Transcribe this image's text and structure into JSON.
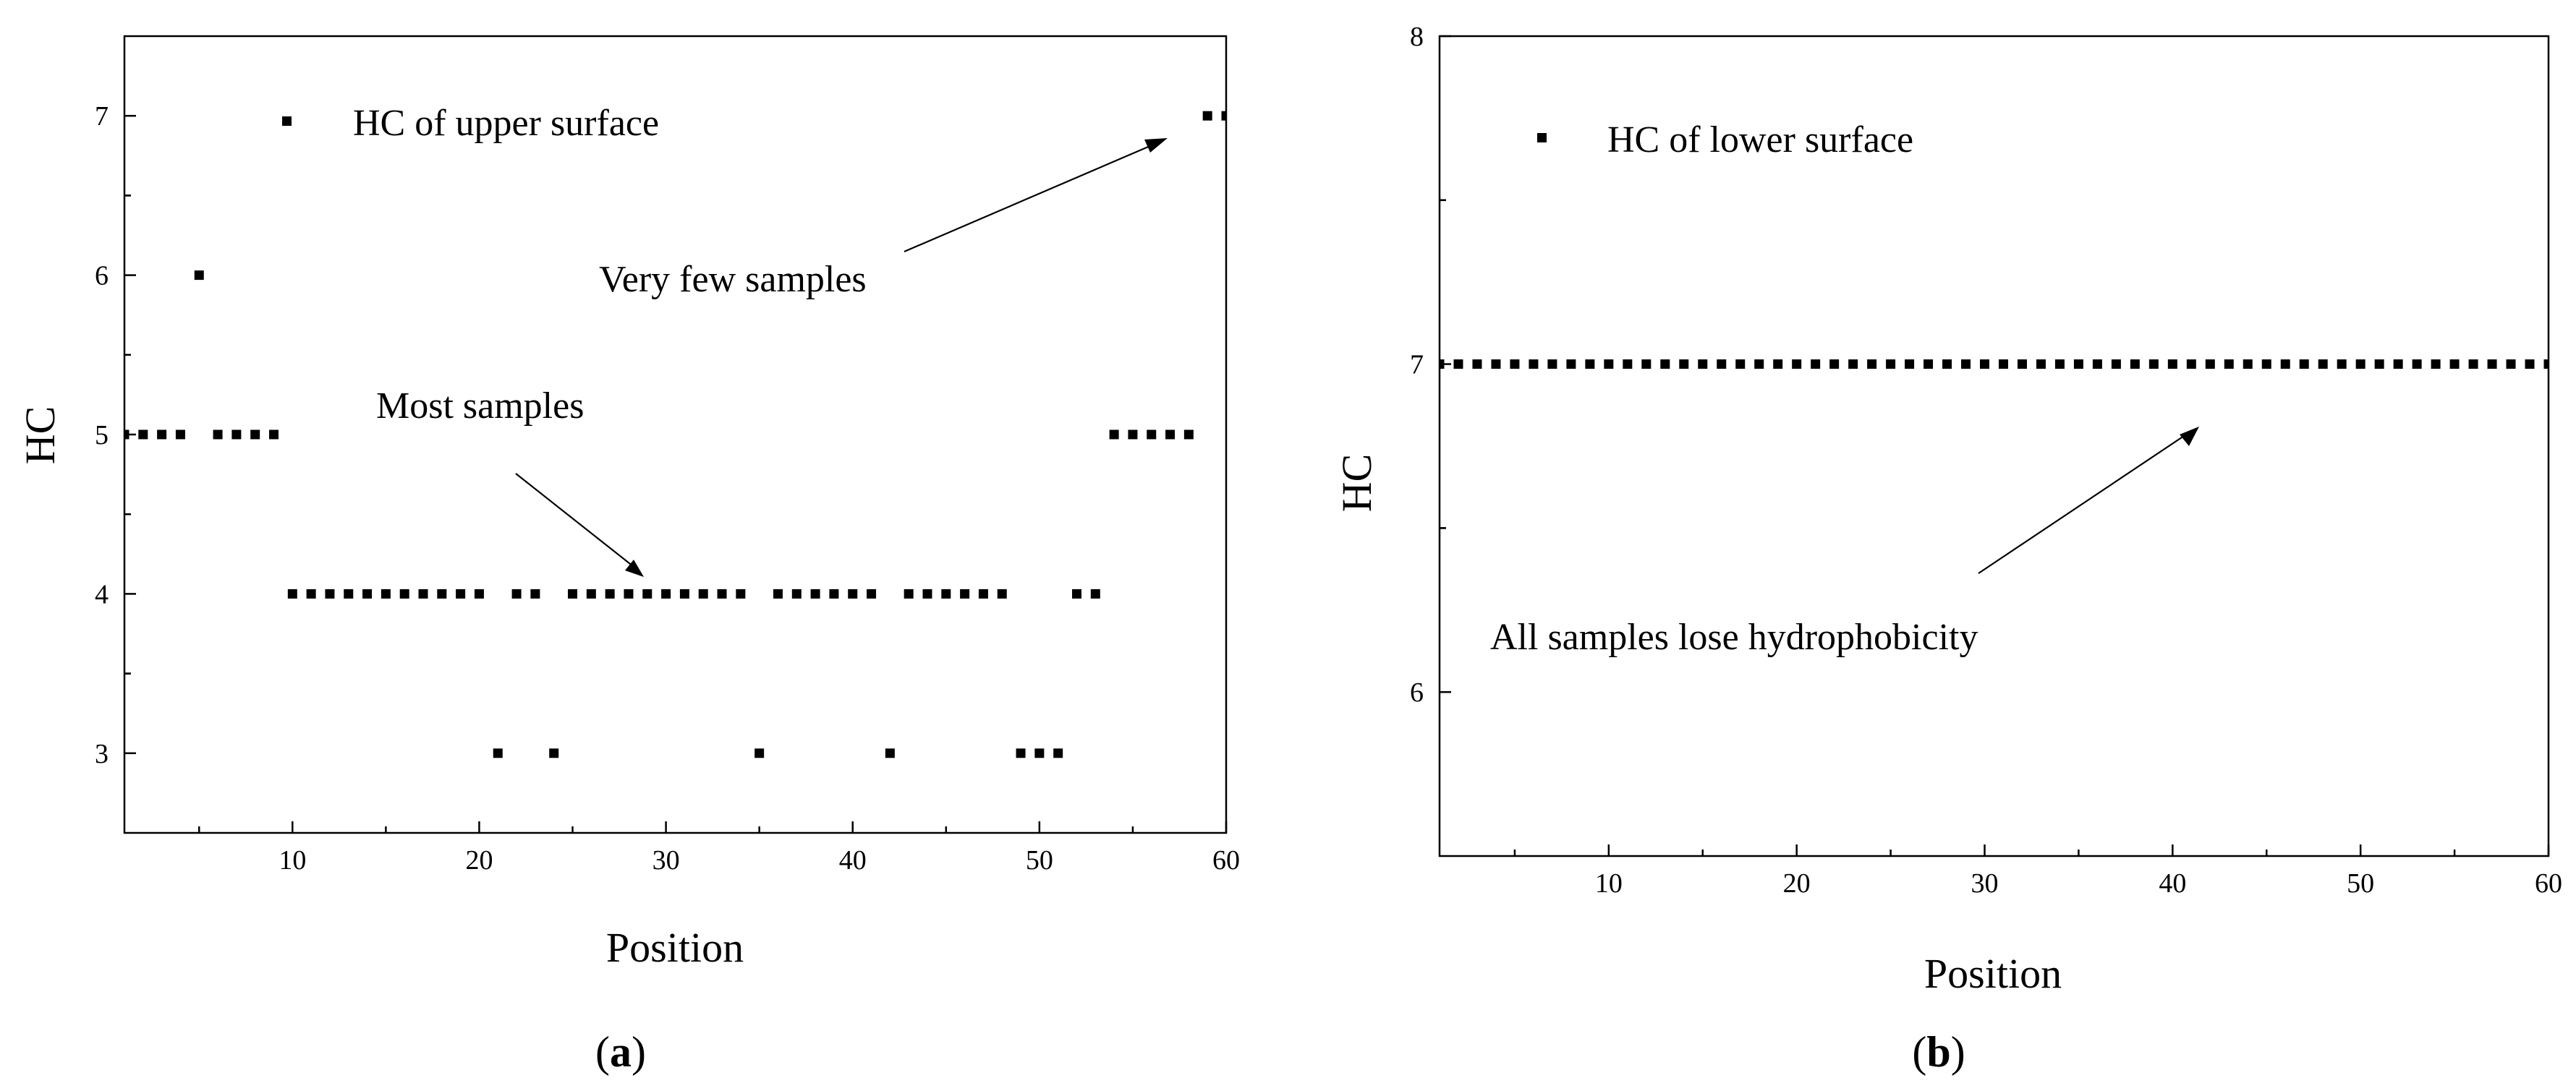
{
  "chart_data": [
    {
      "type": "scatter",
      "panel_label": "a",
      "xlabel": "Position",
      "ylabel": "HC",
      "xlim": [
        1,
        60
      ],
      "ylim": [
        2.5,
        7.5
      ],
      "x_ticks": [
        10,
        20,
        30,
        40,
        50,
        60
      ],
      "y_ticks": [
        3,
        4,
        5,
        6,
        7
      ],
      "series": [
        {
          "name": "HC of upper surface",
          "x": [
            1,
            2,
            3,
            4,
            5,
            6,
            7,
            8,
            9,
            10,
            11,
            12,
            13,
            14,
            15,
            16,
            17,
            18,
            19,
            20,
            21,
            22,
            23,
            24,
            25,
            26,
            27,
            28,
            29,
            30,
            31,
            32,
            33,
            34,
            35,
            36,
            37,
            38,
            39,
            40,
            41,
            42,
            43,
            44,
            45,
            46,
            47,
            48,
            49,
            50,
            51,
            52,
            53,
            54,
            55,
            56,
            57,
            58,
            59,
            60
          ],
          "y": [
            5,
            5,
            5,
            5,
            6,
            5,
            5,
            5,
            5,
            4,
            4,
            4,
            4,
            4,
            4,
            4,
            4,
            4,
            4,
            4,
            3,
            4,
            4,
            3,
            4,
            4,
            4,
            4,
            4,
            4,
            4,
            4,
            4,
            4,
            3,
            4,
            4,
            4,
            4,
            4,
            4,
            3,
            4,
            4,
            4,
            4,
            4,
            4,
            3,
            3,
            3,
            4,
            4,
            5,
            5,
            5,
            5,
            5,
            7,
            7
          ]
        }
      ],
      "annotations": [
        {
          "text": "Very few samples",
          "target": [
            58.5,
            6.87
          ]
        },
        {
          "text": "Most samples",
          "target": [
            29,
            4.1
          ]
        }
      ],
      "legend_position": "top-left"
    },
    {
      "type": "scatter",
      "panel_label": "b",
      "xlabel": "Position",
      "ylabel": "HC",
      "xlim": [
        1,
        60
      ],
      "ylim": [
        5.5,
        8
      ],
      "x_ticks": [
        10,
        20,
        30,
        40,
        50,
        60
      ],
      "y_ticks": [
        6,
        7,
        8
      ],
      "series": [
        {
          "name": "HC of lower surface",
          "x": [
            1,
            2,
            3,
            4,
            5,
            6,
            7,
            8,
            9,
            10,
            11,
            12,
            13,
            14,
            15,
            16,
            17,
            18,
            19,
            20,
            21,
            22,
            23,
            24,
            25,
            26,
            27,
            28,
            29,
            30,
            31,
            32,
            33,
            34,
            35,
            36,
            37,
            38,
            39,
            40,
            41,
            42,
            43,
            44,
            45,
            46,
            47,
            48,
            49,
            50,
            51,
            52,
            53,
            54,
            55,
            56,
            57,
            58,
            59,
            60
          ],
          "y": [
            7,
            7,
            7,
            7,
            7,
            7,
            7,
            7,
            7,
            7,
            7,
            7,
            7,
            7,
            7,
            7,
            7,
            7,
            7,
            7,
            7,
            7,
            7,
            7,
            7,
            7,
            7,
            7,
            7,
            7,
            7,
            7,
            7,
            7,
            7,
            7,
            7,
            7,
            7,
            7,
            7,
            7,
            7,
            7,
            7,
            7,
            7,
            7,
            7,
            7,
            7,
            7,
            7,
            7,
            7,
            7,
            7,
            7,
            7,
            7
          ]
        }
      ],
      "annotations": [
        {
          "text": "All samples lose hydrophobicity",
          "target": [
            41.5,
            6.81
          ]
        }
      ],
      "legend_position": "top-left"
    }
  ]
}
